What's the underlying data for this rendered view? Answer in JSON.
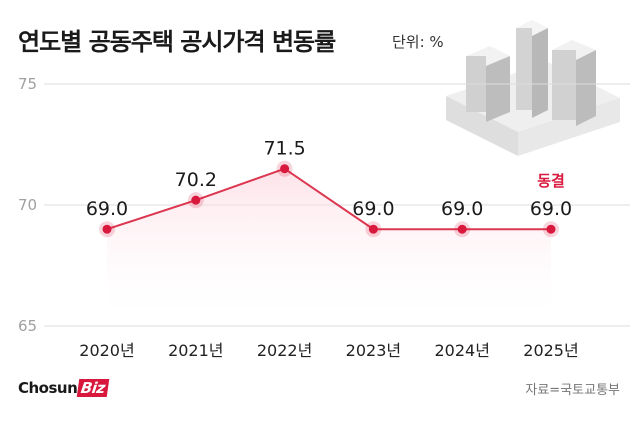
{
  "header": {
    "title": "연도별 공동주택 공시가격 변동률",
    "unit": "단위: %"
  },
  "footer": {
    "logo_main": "Chosun",
    "logo_accent": "Biz",
    "source": "자료=국토교통부"
  },
  "colors": {
    "accent": "#d8183c",
    "line": "#dc3650",
    "grid": "#dddddd"
  },
  "illustration": {
    "icon": "apartment-buildings-icon"
  },
  "chart_data": {
    "type": "line",
    "title": "연도별 공동주택 공시가격 변동률",
    "xlabel": "",
    "ylabel": "",
    "unit": "단위: %",
    "categories": [
      "2020년",
      "2021년",
      "2022년",
      "2023년",
      "2024년",
      "2025년"
    ],
    "values": [
      69.0,
      70.2,
      71.5,
      69.0,
      69.0,
      69.0
    ],
    "value_labels": [
      "69.0",
      "70.2",
      "71.5",
      "69.0",
      "69.0",
      "69.0"
    ],
    "ylim": [
      65,
      75
    ],
    "yticks": [
      75,
      70,
      65
    ],
    "grid": true,
    "legend": "none",
    "annotations": [
      {
        "category": "2025년",
        "text": "동결"
      }
    ]
  }
}
